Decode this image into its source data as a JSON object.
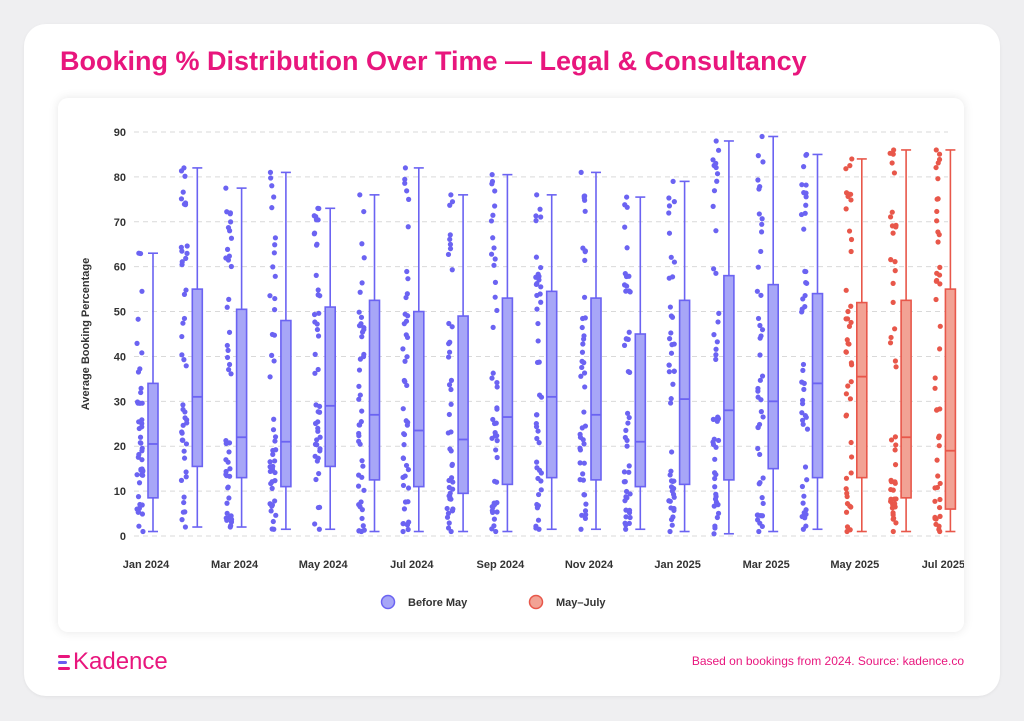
{
  "header": {
    "title": "Booking % Distribution Over Time — Legal & Consultancy"
  },
  "brand": {
    "name": "Kadence",
    "mark_colors": [
      "#e8167d",
      "#6a5cf0",
      "#e8167d"
    ]
  },
  "footer": {
    "note": "Based on bookings from 2024. Source: kadence.co"
  },
  "colors": {
    "before": "#6b63f2",
    "before_fill": "#a7a6f7",
    "after": "#e8574a",
    "after_fill": "#f2a294",
    "grid": "#d9d9d9",
    "axis_text": "#333333"
  },
  "chart_data": {
    "type": "box",
    "title": "Booking % Distribution Over Time — Legal & Consultancy",
    "ylabel": "Average Booking Percentage",
    "xlabel": "",
    "ylim": [
      0,
      90
    ],
    "yticks": [
      0,
      10,
      20,
      30,
      40,
      50,
      60,
      70,
      80,
      90
    ],
    "grid": true,
    "legend_position": "bottom-center",
    "legend": [
      {
        "key": "before",
        "label": "Before May"
      },
      {
        "key": "after",
        "label": "May–July"
      }
    ],
    "x_tick_labels": [
      "Jan 2024",
      "Mar 2024",
      "May 2024",
      "Jul 2024",
      "Sep 2024",
      "Nov 2024",
      "Jan 2025",
      "Mar 2025",
      "May 2025",
      "Jul 2025"
    ],
    "categories": [
      "Jan 2024",
      "Feb 2024",
      "Mar 2024",
      "Apr 2024",
      "May 2024",
      "Jun 2024",
      "Jul 2024",
      "Aug 2024",
      "Sep 2024",
      "Oct 2024",
      "Nov 2024",
      "Dec 2024",
      "Jan 2025",
      "Feb 2025",
      "Mar 2025",
      "Apr 2025",
      "May 2025",
      "Jun 2025",
      "Jul 2025"
    ],
    "boxes": [
      {
        "group": "before",
        "min": 1,
        "q1": 8.5,
        "median": 20.5,
        "q3": 34,
        "max": 63
      },
      {
        "group": "before",
        "min": 2,
        "q1": 15.5,
        "median": 31,
        "q3": 55,
        "max": 82
      },
      {
        "group": "before",
        "min": 2,
        "q1": 13,
        "median": 22,
        "q3": 50.5,
        "max": 77.5
      },
      {
        "group": "before",
        "min": 1.5,
        "q1": 11,
        "median": 21,
        "q3": 48,
        "max": 81
      },
      {
        "group": "before",
        "min": 1.5,
        "q1": 15.5,
        "median": 29,
        "q3": 51,
        "max": 73
      },
      {
        "group": "before",
        "min": 1,
        "q1": 12.5,
        "median": 27,
        "q3": 52.5,
        "max": 76
      },
      {
        "group": "before",
        "min": 1,
        "q1": 11,
        "median": 23.5,
        "q3": 50,
        "max": 82
      },
      {
        "group": "before",
        "min": 1,
        "q1": 9.5,
        "median": 21.5,
        "q3": 49,
        "max": 76
      },
      {
        "group": "before",
        "min": 1,
        "q1": 11.5,
        "median": 26.5,
        "q3": 53,
        "max": 80.5
      },
      {
        "group": "before",
        "min": 1.5,
        "q1": 13,
        "median": 31,
        "q3": 54.5,
        "max": 76
      },
      {
        "group": "before",
        "min": 1.5,
        "q1": 12.5,
        "median": 27,
        "q3": 53,
        "max": 81
      },
      {
        "group": "before",
        "min": 1.5,
        "q1": 11,
        "median": 21,
        "q3": 45,
        "max": 75.5
      },
      {
        "group": "before",
        "min": 1,
        "q1": 11.5,
        "median": 30.5,
        "q3": 52.5,
        "max": 79
      },
      {
        "group": "before",
        "min": 0.5,
        "q1": 12.5,
        "median": 28,
        "q3": 58,
        "max": 88
      },
      {
        "group": "before",
        "min": 1,
        "q1": 15,
        "median": 30,
        "q3": 56,
        "max": 89
      },
      {
        "group": "before",
        "min": 1.5,
        "q1": 13,
        "median": 34,
        "q3": 54,
        "max": 85
      },
      {
        "group": "after",
        "min": 1,
        "q1": 13,
        "median": 35.5,
        "q3": 52,
        "max": 84
      },
      {
        "group": "after",
        "min": 1,
        "q1": 8.5,
        "median": 22,
        "q3": 52.5,
        "max": 86
      },
      {
        "group": "after",
        "min": 1,
        "q1": 6,
        "median": 19,
        "q3": 55,
        "max": 86
      }
    ]
  }
}
